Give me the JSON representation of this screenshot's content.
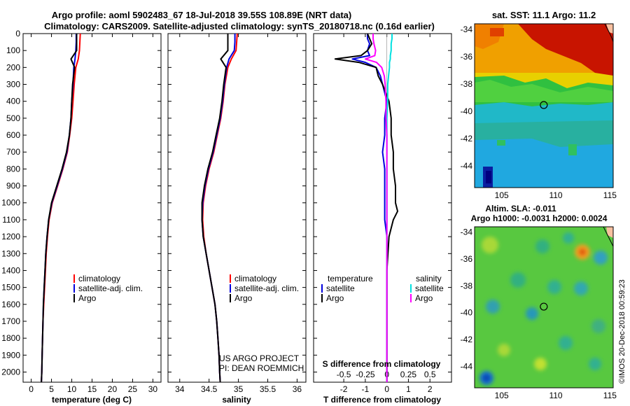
{
  "chart_data": {
    "type": "line",
    "title_lines": [
      "Argo profile: aoml 5902483_67 18-Jul-2018 39.55S 108.89E (NRT data)",
      "Climatology: CARS2009. Satellite-adjusted climatology: synTS_20180718.nc (0.16d earlier)"
    ],
    "depth_ticks": [
      "0",
      "100",
      "200",
      "300",
      "400",
      "500",
      "600",
      "700",
      "800",
      "900",
      "1000",
      "1100",
      "1200",
      "1300",
      "1400",
      "1500",
      "1600",
      "1700",
      "1800",
      "1900",
      "2000"
    ],
    "depth_ylim": [
      0,
      2060
    ],
    "temperature": {
      "xlabel": "temperature (deg C)",
      "xlim": [
        -2,
        32
      ],
      "xticks": [
        "0",
        "5",
        "10",
        "15",
        "20",
        "25",
        "30"
      ],
      "depth": [
        0,
        50,
        100,
        150,
        200,
        300,
        400,
        500,
        600,
        700,
        800,
        900,
        1000,
        1100,
        1200,
        1300,
        1400,
        1500,
        1600,
        1700,
        1800,
        1900,
        2000,
        2060
      ],
      "series": [
        {
          "name": "climatology",
          "color": "#ff0000",
          "values": [
            12.1,
            12.0,
            11.9,
            11.6,
            11.0,
            10.6,
            10.3,
            10.0,
            9.5,
            8.9,
            7.8,
            6.5,
            5.2,
            4.4,
            4.0,
            3.7,
            3.5,
            3.3,
            3.1,
            2.9,
            2.8,
            2.7,
            2.6,
            2.5
          ]
        },
        {
          "name": "satellite-adj. clim.",
          "color": "#0000dd",
          "values": [
            11.1,
            11.1,
            11.0,
            10.8,
            10.5,
            10.3,
            10.0,
            9.8,
            9.4,
            8.8,
            7.7,
            6.4,
            5.1,
            4.3,
            3.9,
            3.6,
            3.4,
            3.2,
            3.0,
            2.9,
            2.8,
            2.7,
            2.6,
            2.5
          ]
        },
        {
          "name": "Argo",
          "color": "#000000",
          "values": [
            11.2,
            11.2,
            11.2,
            9.8,
            10.7,
            10.2,
            10.0,
            9.8,
            9.4,
            8.7,
            7.6,
            6.3,
            5.0,
            4.3,
            3.9,
            3.6,
            3.4,
            3.2,
            3.0,
            2.9,
            2.8,
            2.7,
            2.6,
            2.5
          ]
        }
      ]
    },
    "salinity": {
      "xlabel": "salinity",
      "xlim": [
        33.8,
        36.15
      ],
      "xticks": [
        "34",
        "34.5",
        "35",
        "35.5",
        "36"
      ],
      "depth": [
        0,
        50,
        100,
        150,
        200,
        300,
        400,
        500,
        600,
        700,
        800,
        900,
        1000,
        1100,
        1200,
        1300,
        1400,
        1500,
        1600,
        1700,
        1800,
        1900,
        2000,
        2060
      ],
      "series": [
        {
          "name": "climatology",
          "color": "#ff0000",
          "values": [
            34.98,
            34.97,
            34.96,
            34.88,
            34.82,
            34.77,
            34.74,
            34.7,
            34.64,
            34.58,
            34.5,
            34.44,
            34.4,
            34.39,
            34.41,
            34.45,
            34.5,
            34.55,
            34.6,
            34.63,
            34.65,
            34.67,
            34.68,
            34.69
          ]
        },
        {
          "name": "satellite-adj. clim.",
          "color": "#0000dd",
          "values": [
            34.94,
            34.94,
            34.93,
            34.84,
            34.8,
            34.76,
            34.73,
            34.69,
            34.63,
            34.57,
            34.49,
            34.43,
            34.39,
            34.38,
            34.4,
            34.45,
            34.5,
            34.55,
            34.6,
            34.63,
            34.65,
            34.67,
            34.68,
            34.69
          ]
        },
        {
          "name": "Argo",
          "color": "#000000",
          "values": [
            34.82,
            34.82,
            34.82,
            34.7,
            34.79,
            34.75,
            34.72,
            34.68,
            34.62,
            34.56,
            34.48,
            34.42,
            34.38,
            34.38,
            34.4,
            34.45,
            34.5,
            34.55,
            34.6,
            34.63,
            34.65,
            34.67,
            34.68,
            34.69
          ]
        }
      ],
      "credit_lines": [
        "US ARGO PROJECT",
        "PI: DEAN ROEMMICH"
      ]
    },
    "difference": {
      "xlabel": "T difference from climatology",
      "top_label": "S difference from climatology",
      "xlim_T": [
        -3.4,
        3.0
      ],
      "xticks_T": [
        "-2",
        "-1",
        "0",
        "1",
        "2"
      ],
      "xlim_S": [
        -0.85,
        0.75
      ],
      "xticks_S": [
        "-0.5",
        "-0.25",
        "0",
        "0.25",
        "0.5"
      ],
      "depth": [
        0,
        30,
        60,
        100,
        130,
        150,
        170,
        200,
        250,
        300,
        400,
        500,
        600,
        700,
        800,
        900,
        1000,
        1050,
        1100,
        1200,
        1400,
        1600,
        1800,
        2000,
        2060
      ],
      "series": [
        {
          "name": "T satellite",
          "color": "#0000dd",
          "units": "T",
          "values": [
            -0.9,
            -0.9,
            -0.8,
            -0.9,
            -0.8,
            -1.6,
            -1.0,
            -0.5,
            -0.3,
            -0.2,
            0.0,
            -0.1,
            -0.1,
            -0.2,
            -0.1,
            -0.1,
            -0.1,
            -0.1,
            -0.1,
            0.0,
            0.0,
            0.0,
            0.0,
            0.0,
            0.0
          ]
        },
        {
          "name": "T Argo",
          "color": "#000000",
          "units": "T",
          "values": [
            -0.9,
            -0.8,
            -0.7,
            -0.9,
            -1.2,
            -2.4,
            -1.3,
            -0.5,
            -0.4,
            -0.2,
            0.1,
            0.2,
            0.2,
            0.3,
            0.3,
            0.4,
            0.4,
            0.5,
            0.3,
            0.1,
            0.0,
            0.0,
            0.0,
            0.0,
            0.0
          ]
        },
        {
          "name": "S satellite",
          "color": "#00e0e0",
          "units": "S",
          "values": [
            0.06,
            0.06,
            0.05,
            0.05,
            0.04,
            0.04,
            0.03,
            0.03,
            0.02,
            0.01,
            0.01,
            0.0,
            0.0,
            0.0,
            0.0,
            0.0,
            0.0,
            0.0,
            0.0,
            0.0,
            0.0,
            0.0,
            0.0,
            0.0,
            0.0
          ]
        },
        {
          "name": "S Argo",
          "color": "#ff00ff",
          "units": "S",
          "values": [
            -0.16,
            -0.16,
            -0.15,
            -0.13,
            -0.14,
            -0.25,
            -0.12,
            -0.06,
            -0.03,
            -0.02,
            -0.01,
            -0.01,
            0.0,
            0.0,
            0.0,
            0.0,
            0.0,
            0.0,
            0.0,
            0.0,
            0.0,
            0.0,
            0.0,
            0.0,
            0.0
          ]
        }
      ],
      "legend_temperature": {
        "title": "temperature",
        "items": [
          "satellite",
          "Argo"
        ]
      },
      "legend_salinity": {
        "title": "salinity",
        "items": [
          "satellite",
          "Argo"
        ]
      }
    },
    "legend_items": [
      "climatology",
      "satellite-adj. clim.",
      "Argo"
    ],
    "sst_map": {
      "title": "sat. SST: 11.1 Argo: 11.2",
      "xticks": [
        "105",
        "110",
        "115"
      ],
      "yticks": [
        "-34",
        "-36",
        "-38",
        "-40",
        "-42",
        "-44"
      ],
      "lon_range": [
        102.5,
        115.3
      ],
      "lat_range": [
        -45.6,
        -33.6
      ],
      "marker": {
        "lon": 108.89,
        "lat": -39.55
      }
    },
    "sla_map": {
      "title_lines": [
        "Altim. SLA: -0.011",
        "Argo h1000: -0.0031 h2000: 0.0024"
      ],
      "xticks": [
        "105",
        "110",
        "115"
      ],
      "yticks": [
        "-34",
        "-36",
        "-38",
        "-40",
        "-42",
        "-44"
      ],
      "lon_range": [
        102.5,
        115.3
      ],
      "lat_range": [
        -45.6,
        -33.6
      ],
      "marker": {
        "lon": 108.89,
        "lat": -39.55
      }
    },
    "credit": "©IMOS 20-Dec-2018 00:59:23"
  }
}
